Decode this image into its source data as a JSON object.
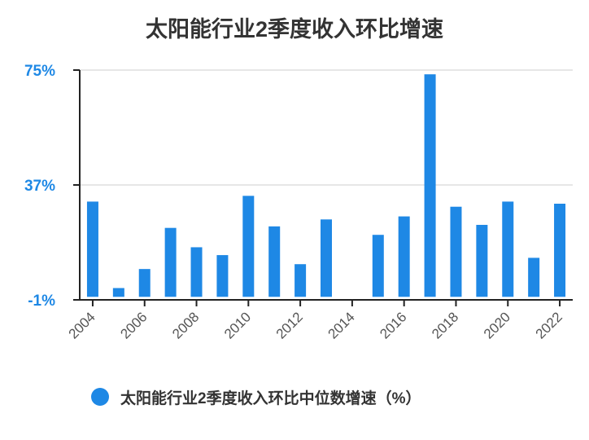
{
  "title": "太阳能行业2季度收入环比增速",
  "colors": {
    "bar": "#1e88e5",
    "grid": "#dddddd",
    "axis": "#222222",
    "tick_text": "#555555",
    "ytick_text": "#1e88e5"
  },
  "chart_data": {
    "type": "bar",
    "title": "太阳能行业2季度收入环比增速",
    "xlabel": "",
    "ylabel": "",
    "categories": [
      "2004",
      "2005",
      "2006",
      "2007",
      "2008",
      "2009",
      "2010",
      "2011",
      "2012",
      "2013",
      "2014",
      "2015",
      "2016",
      "2017",
      "2018",
      "2019",
      "2020",
      "2021",
      "2022"
    ],
    "x_tick_labels": [
      "2004",
      "2006",
      "2008",
      "2010",
      "2012",
      "2014",
      "2016",
      "2018",
      "2020",
      "2022"
    ],
    "y_tick_labels": [
      "75%",
      "37%",
      "-1%"
    ],
    "y_ticks": [
      75,
      37,
      -1
    ],
    "ylim": [
      -1,
      75
    ],
    "grid": true,
    "legend_position": "bottom",
    "series": [
      {
        "name": "太阳能行业2季度收入环比中位数增速（%）",
        "values": [
          31.5,
          2.9,
          9.2,
          22.8,
          16.4,
          13.8,
          33.4,
          23.3,
          10.8,
          25.6,
          0,
          20.5,
          26.6,
          73.6,
          29.8,
          23.8,
          31.5,
          12.9,
          30.8
        ]
      }
    ]
  }
}
